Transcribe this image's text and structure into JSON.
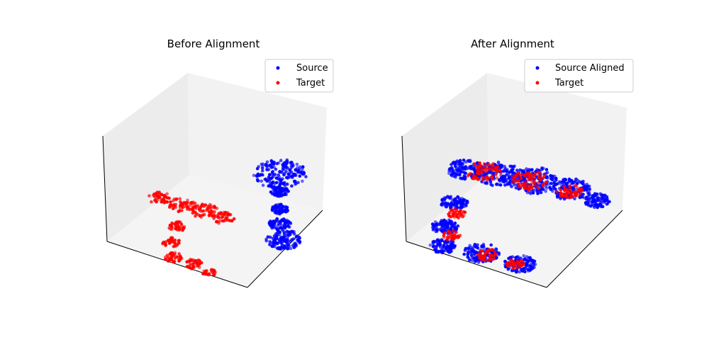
{
  "chart_data": [
    {
      "type": "scatter",
      "title": "Before Alignment",
      "projection": "3d",
      "grid": false,
      "axis_ticks": false,
      "legend_placement": "top-right",
      "series": [
        {
          "name": "Source",
          "color": "#0000ff",
          "shape": [
            {
              "cx": 0.78,
              "cy": 0.47,
              "r": 0.12
            },
            {
              "cx": 0.78,
              "cy": 0.55,
              "r": 0.04
            },
            {
              "cx": 0.78,
              "cy": 0.63,
              "r": 0.04
            },
            {
              "cx": 0.78,
              "cy": 0.7,
              "r": 0.05
            },
            {
              "cx": 0.8,
              "cy": 0.77,
              "r": 0.08
            }
          ]
        },
        {
          "name": "Target",
          "color": "#ff0000",
          "shape": [
            {
              "cx": 0.25,
              "cy": 0.58,
              "r": 0.05
            },
            {
              "cx": 0.35,
              "cy": 0.61,
              "r": 0.06
            },
            {
              "cx": 0.45,
              "cy": 0.64,
              "r": 0.06
            },
            {
              "cx": 0.53,
              "cy": 0.67,
              "r": 0.05
            },
            {
              "cx": 0.33,
              "cy": 0.71,
              "r": 0.04
            },
            {
              "cx": 0.3,
              "cy": 0.78,
              "r": 0.04
            },
            {
              "cx": 0.31,
              "cy": 0.85,
              "r": 0.04
            },
            {
              "cx": 0.4,
              "cy": 0.88,
              "r": 0.04
            },
            {
              "cx": 0.47,
              "cy": 0.92,
              "r": 0.03
            }
          ]
        }
      ]
    },
    {
      "type": "scatter",
      "title": "After Alignment",
      "projection": "3d",
      "grid": false,
      "axis_ticks": false,
      "legend_placement": "top-right",
      "series": [
        {
          "name": "Source Aligned",
          "color": "#0000ff",
          "shape": [
            {
              "cx": 0.28,
              "cy": 0.45,
              "r": 0.08
            },
            {
              "cx": 0.42,
              "cy": 0.47,
              "r": 0.1
            },
            {
              "cx": 0.58,
              "cy": 0.5,
              "r": 0.11
            },
            {
              "cx": 0.74,
              "cy": 0.54,
              "r": 0.09
            },
            {
              "cx": 0.86,
              "cy": 0.59,
              "r": 0.06
            },
            {
              "cx": 0.23,
              "cy": 0.6,
              "r": 0.06
            },
            {
              "cx": 0.19,
              "cy": 0.71,
              "r": 0.06
            },
            {
              "cx": 0.18,
              "cy": 0.8,
              "r": 0.06
            },
            {
              "cx": 0.35,
              "cy": 0.83,
              "r": 0.08
            },
            {
              "cx": 0.52,
              "cy": 0.88,
              "r": 0.07
            }
          ]
        },
        {
          "name": "Target",
          "color": "#ff0000",
          "shape": [
            {
              "cx": 0.36,
              "cy": 0.46,
              "r": 0.08
            },
            {
              "cx": 0.56,
              "cy": 0.5,
              "r": 0.08
            },
            {
              "cx": 0.74,
              "cy": 0.55,
              "r": 0.06
            },
            {
              "cx": 0.24,
              "cy": 0.65,
              "r": 0.04
            },
            {
              "cx": 0.22,
              "cy": 0.75,
              "r": 0.04
            },
            {
              "cx": 0.38,
              "cy": 0.84,
              "r": 0.05
            },
            {
              "cx": 0.5,
              "cy": 0.88,
              "r": 0.04
            }
          ]
        }
      ]
    }
  ]
}
